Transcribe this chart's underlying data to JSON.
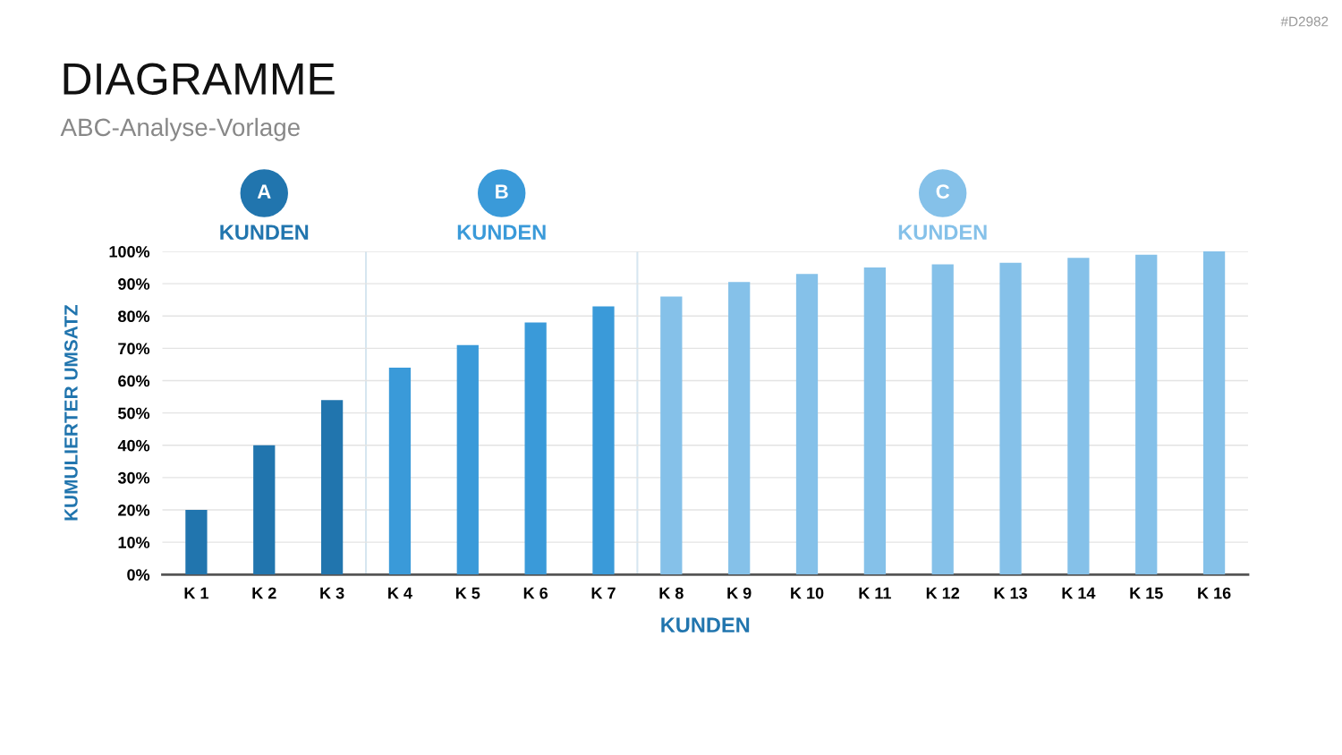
{
  "chart_data": {
    "type": "bar",
    "title": "DIAGRAMME",
    "subtitle": "ABC-Analyse-Vorlage",
    "xlabel": "KUNDEN",
    "ylabel": "KUMULIERTER UMSATZ",
    "categories": [
      "K 1",
      "K 2",
      "K 3",
      "K 4",
      "K 5",
      "K 6",
      "K 7",
      "K 8",
      "K 9",
      "K 10",
      "K 11",
      "K 12",
      "K 13",
      "K 14",
      "K 15",
      "K 16"
    ],
    "values": [
      20,
      40,
      54,
      64,
      71,
      78,
      83,
      86,
      90.5,
      93,
      95,
      96,
      96.5,
      98,
      99,
      100
    ],
    "colors": [
      "#2175ae",
      "#2175ae",
      "#2175ae",
      "#3a9ad9",
      "#3a9ad9",
      "#3a9ad9",
      "#3a9ad9",
      "#85c1e9",
      "#85c1e9",
      "#85c1e9",
      "#85c1e9",
      "#85c1e9",
      "#85c1e9",
      "#85c1e9",
      "#85c1e9",
      "#85c1e9"
    ],
    "ylim": [
      0,
      100
    ],
    "yticks": [
      {
        "value": 0,
        "label": "0%"
      },
      {
        "value": 10,
        "label": "10%"
      },
      {
        "value": 20,
        "label": "20%"
      },
      {
        "value": 30,
        "label": "30%"
      },
      {
        "value": 40,
        "label": "40%"
      },
      {
        "value": 50,
        "label": "50%"
      },
      {
        "value": 60,
        "label": "60%"
      },
      {
        "value": 70,
        "label": "70%"
      },
      {
        "value": 80,
        "label": "80%"
      },
      {
        "value": 90,
        "label": "90%"
      },
      {
        "value": 100,
        "label": "100%"
      }
    ],
    "grid": "y",
    "annotations": [
      "A",
      "KUNDEN",
      "B",
      "KUNDEN",
      "C",
      "KUNDEN",
      "#D2982"
    ]
  }
}
